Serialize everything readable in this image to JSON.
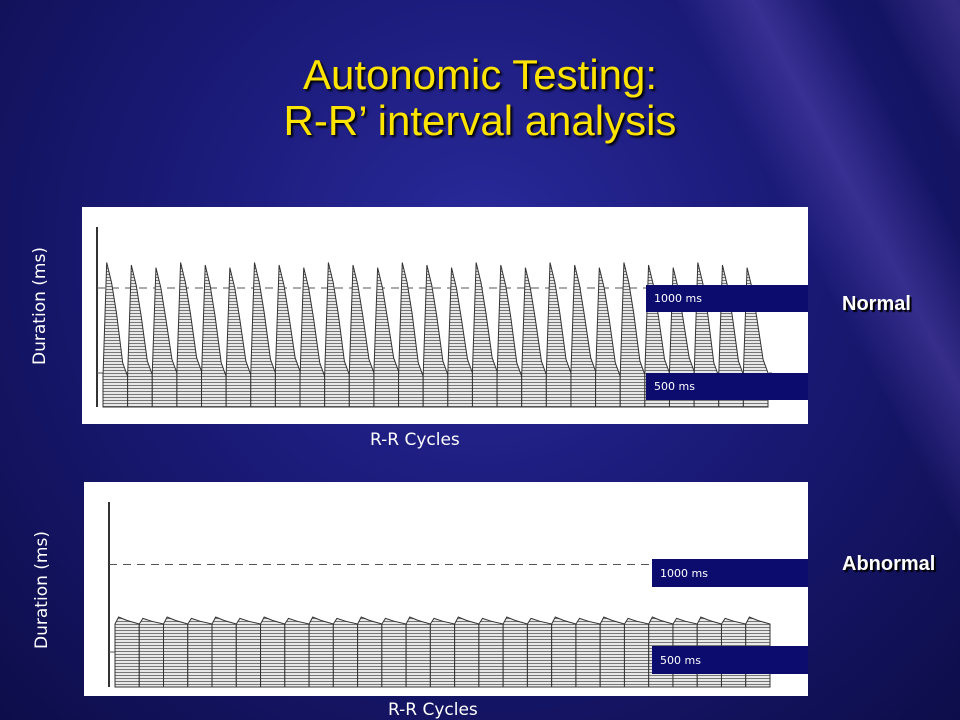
{
  "title": {
    "line1": "Autonomic Testing:",
    "line2": "R-R’ interval analysis"
  },
  "colors": {
    "background": "#1a1a78",
    "title": "#ffe400",
    "label_box": "#0c0c6e"
  },
  "chart_data": [
    {
      "type": "bar",
      "title": "",
      "xlabel": "R-R Cycles",
      "ylabel": "Duration (ms)",
      "reference_lines": [
        "1000 ms",
        "500 ms"
      ],
      "status": "Normal",
      "pattern": "large cyclic variation in R-R interval",
      "cycles": 27,
      "peak_ms": 1150,
      "trough_ms": 480
    },
    {
      "type": "bar",
      "title": "",
      "xlabel": "R-R Cycles",
      "ylabel": "Duration (ms)",
      "reference_lines": [
        "1000 ms",
        "500 ms"
      ],
      "status": "Abnormal",
      "pattern": "flat R-R interval with minimal variation",
      "cycles": 27,
      "peak_ms": 700,
      "trough_ms": 660
    }
  ]
}
